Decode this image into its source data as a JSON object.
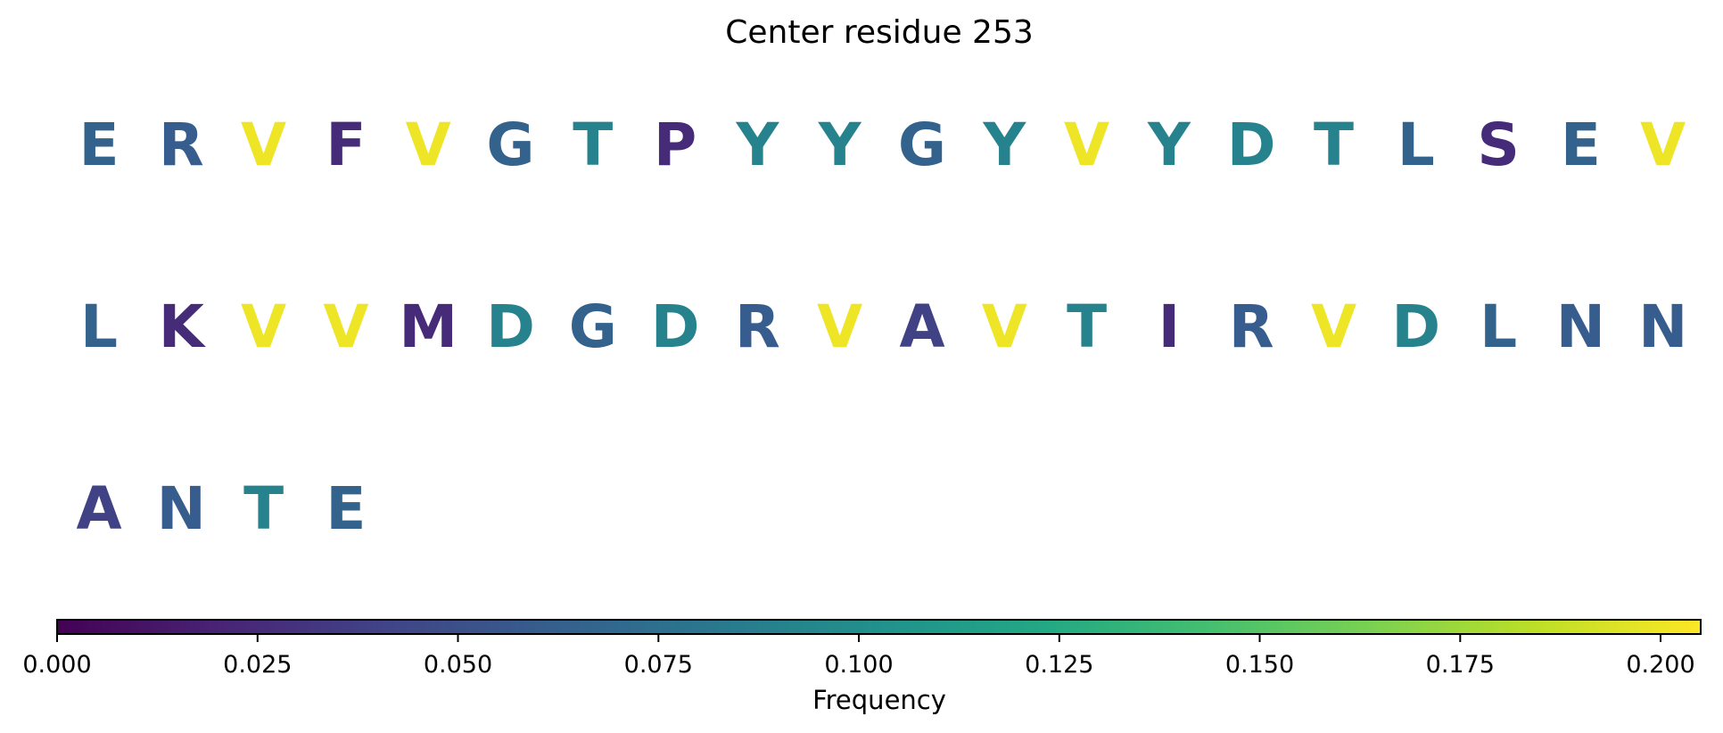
{
  "chart_data": {
    "type": "heatmap",
    "title": "Center residue 253",
    "residues": [
      {
        "letter": "E",
        "frequency": 0.065
      },
      {
        "letter": "R",
        "frequency": 0.06
      },
      {
        "letter": "V",
        "frequency": 0.2
      },
      {
        "letter": "F",
        "frequency": 0.025
      },
      {
        "letter": "V",
        "frequency": 0.2
      },
      {
        "letter": "G",
        "frequency": 0.065
      },
      {
        "letter": "T",
        "frequency": 0.09
      },
      {
        "letter": "P",
        "frequency": 0.025
      },
      {
        "letter": "Y",
        "frequency": 0.09
      },
      {
        "letter": "Y",
        "frequency": 0.09
      },
      {
        "letter": "G",
        "frequency": 0.065
      },
      {
        "letter": "Y",
        "frequency": 0.09
      },
      {
        "letter": "V",
        "frequency": 0.2
      },
      {
        "letter": "Y",
        "frequency": 0.09
      },
      {
        "letter": "D",
        "frequency": 0.09
      },
      {
        "letter": "T",
        "frequency": 0.09
      },
      {
        "letter": "L",
        "frequency": 0.065
      },
      {
        "letter": "S",
        "frequency": 0.025
      },
      {
        "letter": "E",
        "frequency": 0.065
      },
      {
        "letter": "V",
        "frequency": 0.2
      },
      {
        "letter": "L",
        "frequency": 0.065
      },
      {
        "letter": "K",
        "frequency": 0.025
      },
      {
        "letter": "V",
        "frequency": 0.2
      },
      {
        "letter": "V",
        "frequency": 0.2
      },
      {
        "letter": "M",
        "frequency": 0.025
      },
      {
        "letter": "D",
        "frequency": 0.09
      },
      {
        "letter": "G",
        "frequency": 0.065
      },
      {
        "letter": "D",
        "frequency": 0.09
      },
      {
        "letter": "R",
        "frequency": 0.06
      },
      {
        "letter": "V",
        "frequency": 0.2
      },
      {
        "letter": "A",
        "frequency": 0.04
      },
      {
        "letter": "V",
        "frequency": 0.2
      },
      {
        "letter": "T",
        "frequency": 0.09
      },
      {
        "letter": "I",
        "frequency": 0.025
      },
      {
        "letter": "R",
        "frequency": 0.06
      },
      {
        "letter": "V",
        "frequency": 0.2
      },
      {
        "letter": "D",
        "frequency": 0.09
      },
      {
        "letter": "L",
        "frequency": 0.065
      },
      {
        "letter": "N",
        "frequency": 0.06
      },
      {
        "letter": "N",
        "frequency": 0.06
      },
      {
        "letter": "A",
        "frequency": 0.04
      },
      {
        "letter": "N",
        "frequency": 0.06
      },
      {
        "letter": "T",
        "frequency": 0.09
      },
      {
        "letter": "E",
        "frequency": 0.065
      }
    ],
    "colorbar": {
      "colormap": "viridis",
      "range": [
        0.0,
        0.205
      ],
      "ticks": [
        0.0,
        0.025,
        0.05,
        0.075,
        0.1,
        0.125,
        0.15,
        0.175,
        0.2
      ],
      "tick_labels": [
        "0.000",
        "0.025",
        "0.050",
        "0.075",
        "0.100",
        "0.125",
        "0.150",
        "0.175",
        "0.200"
      ],
      "label": "Frequency",
      "orientation": "horizontal",
      "position": "bottom"
    }
  }
}
